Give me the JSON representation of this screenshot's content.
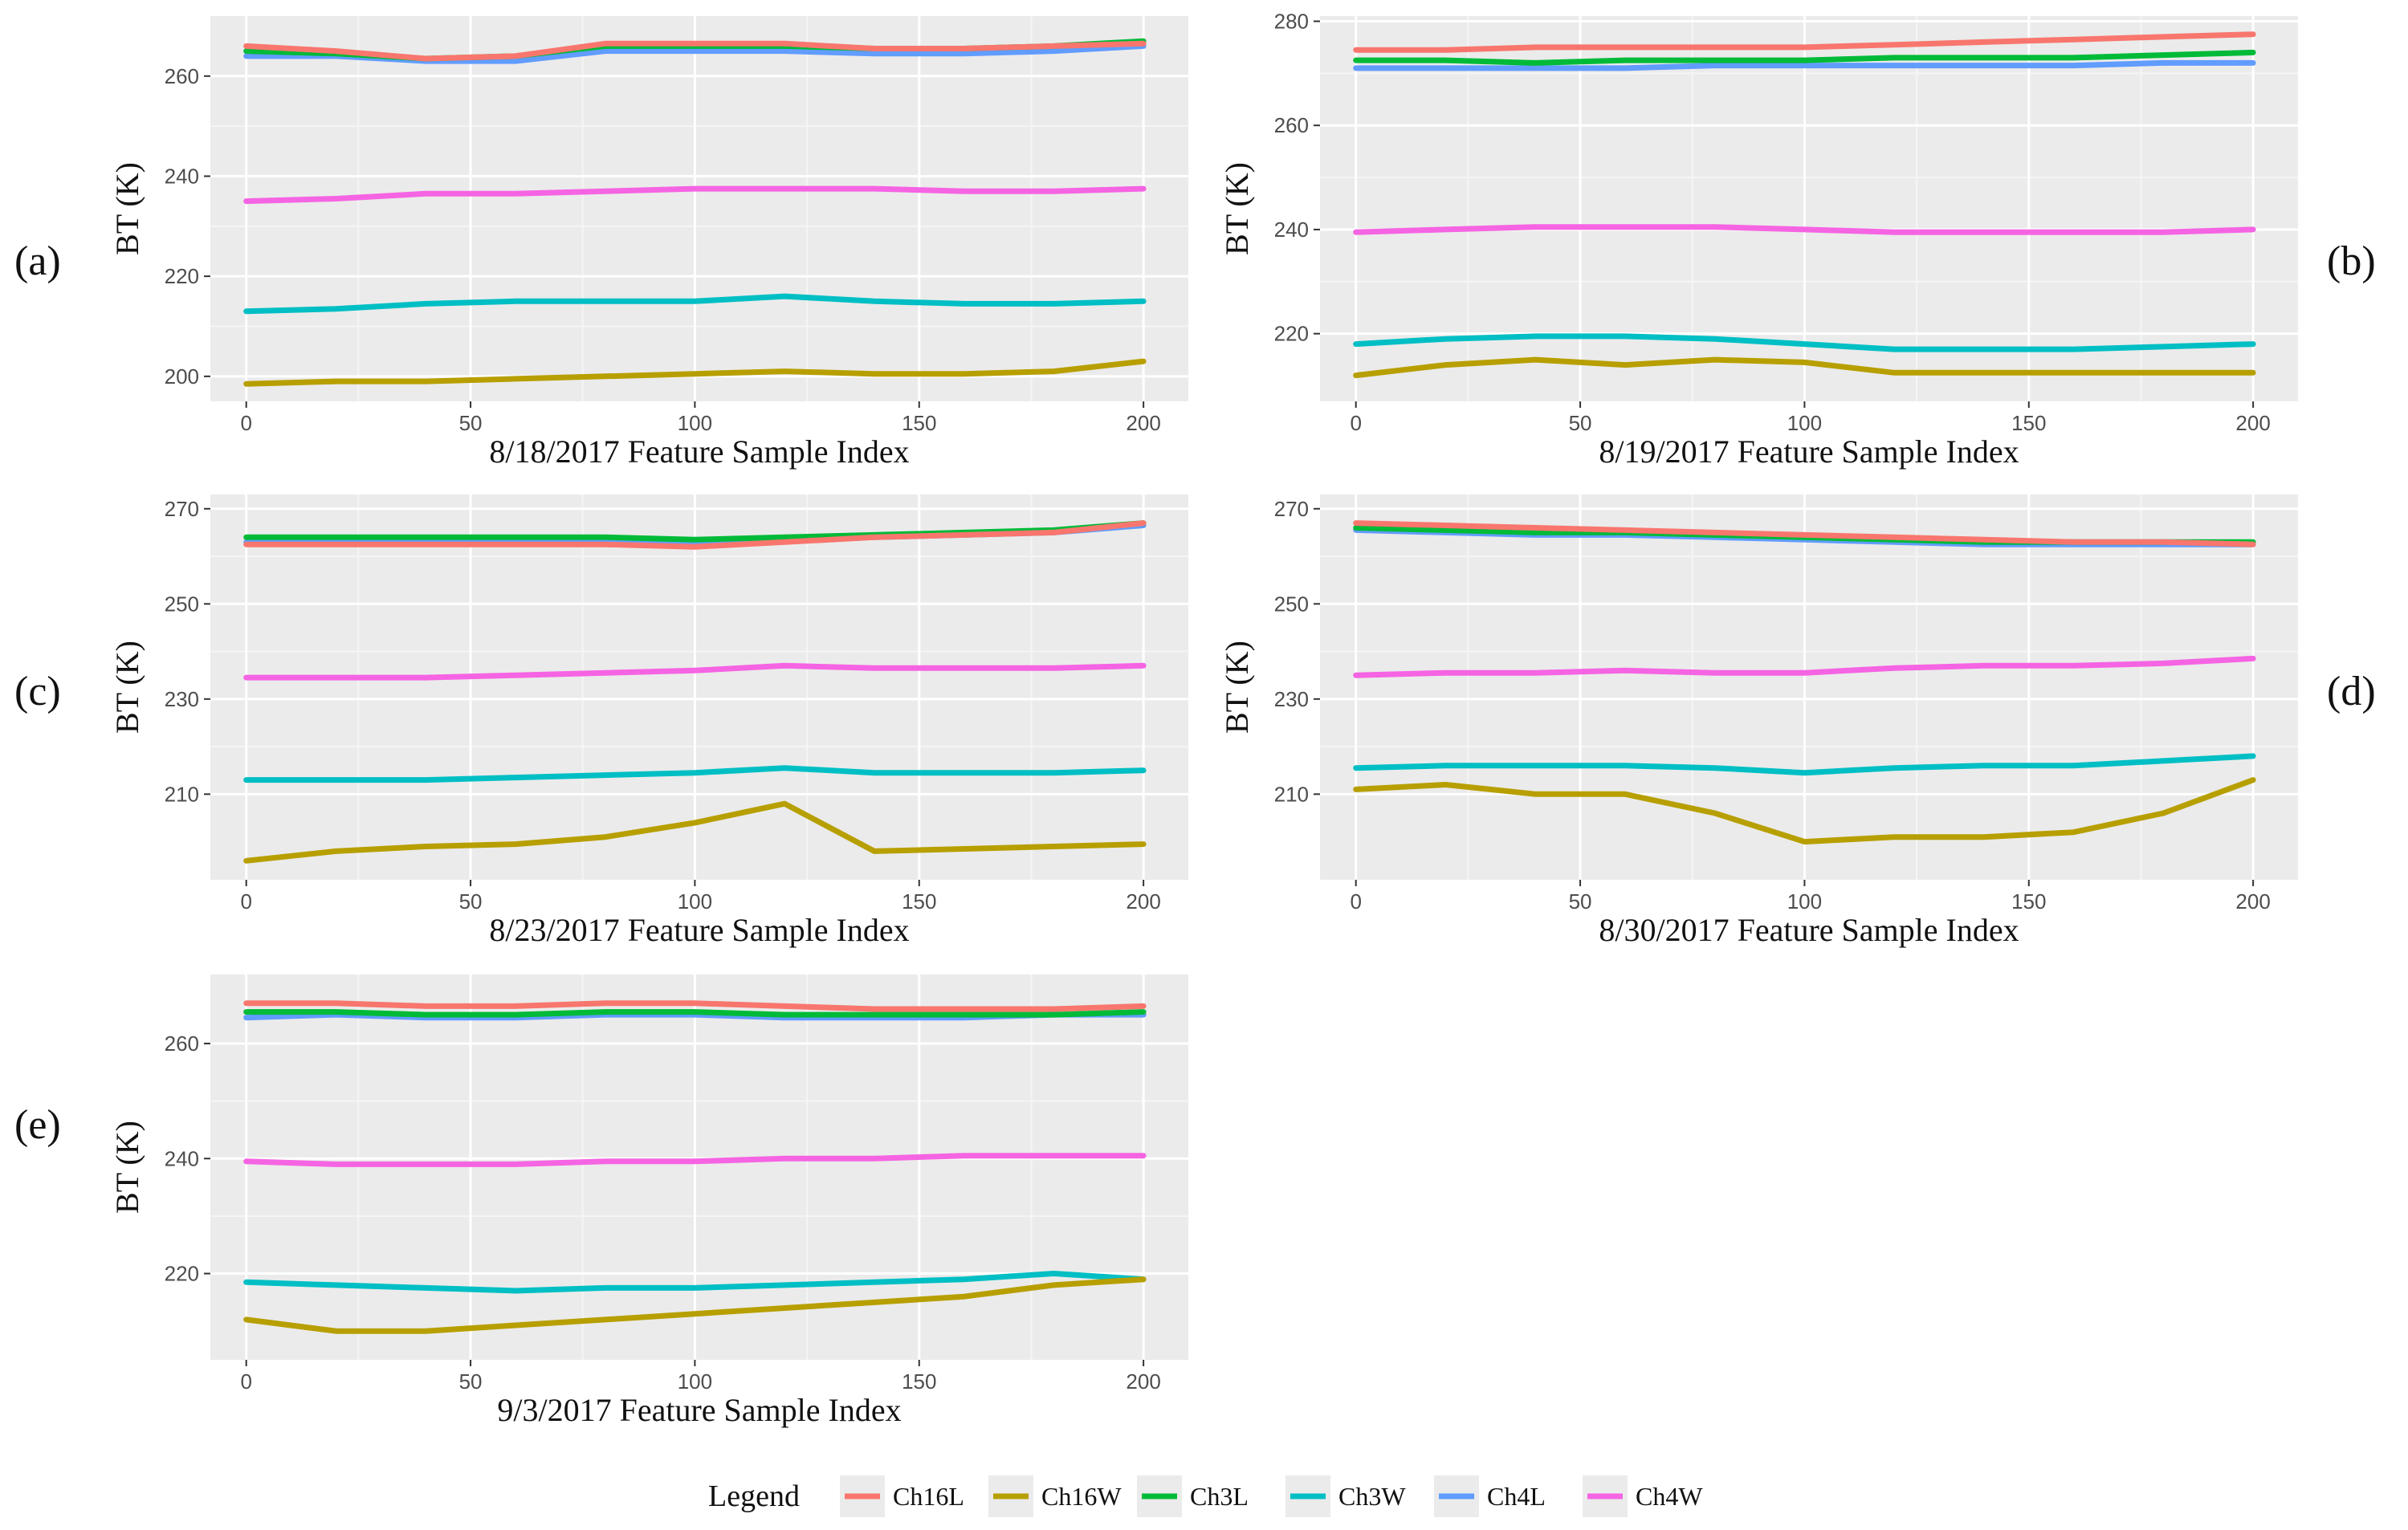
{
  "legend": {
    "title": "Legend",
    "items": [
      {
        "name": "Ch16L",
        "color": "#F8766D"
      },
      {
        "name": "Ch16W",
        "color": "#B79F00"
      },
      {
        "name": "Ch3L",
        "color": "#00BA38"
      },
      {
        "name": "Ch3W",
        "color": "#00BFC4"
      },
      {
        "name": "Ch4L",
        "color": "#619CFF"
      },
      {
        "name": "Ch4W",
        "color": "#F564E3"
      }
    ]
  },
  "chart_data": [
    {
      "panel": "(a)",
      "type": "line",
      "xlabel": "8/18/2017 Feature Sample Index",
      "ylabel": "BT (K)",
      "xlim": [
        -8,
        210
      ],
      "ylim": [
        195,
        272
      ],
      "xticks": [
        0,
        50,
        100,
        150,
        200
      ],
      "yticks": [
        200,
        220,
        240,
        260
      ],
      "series": [
        {
          "name": "Ch4W",
          "color": "#F564E3",
          "x": [
            0,
            20,
            40,
            60,
            80,
            100,
            120,
            140,
            160,
            180,
            200
          ],
          "y": [
            235,
            235.5,
            236.5,
            236.5,
            237,
            237.5,
            237.5,
            237.5,
            237,
            237,
            237.5
          ]
        },
        {
          "name": "Ch3W",
          "color": "#00BFC4",
          "x": [
            0,
            20,
            40,
            60,
            80,
            100,
            120,
            140,
            160,
            180,
            200
          ],
          "y": [
            213,
            213.5,
            214.5,
            215,
            215,
            215,
            216,
            215,
            214.5,
            214.5,
            215
          ]
        },
        {
          "name": "Ch16W",
          "color": "#B79F00",
          "x": [
            0,
            20,
            40,
            60,
            80,
            100,
            120,
            140,
            160,
            180,
            200
          ],
          "y": [
            198.5,
            199,
            199,
            199.5,
            200,
            200.5,
            201,
            200.5,
            200.5,
            201,
            203
          ]
        },
        {
          "name": "Ch4L",
          "color": "#619CFF",
          "x": [
            0,
            20,
            40,
            60,
            80,
            100,
            120,
            140,
            160,
            180,
            200
          ],
          "y": [
            264,
            264,
            263,
            263,
            265,
            265,
            265,
            264.5,
            264.5,
            265,
            266
          ]
        },
        {
          "name": "Ch3L",
          "color": "#00BA38",
          "x": [
            0,
            20,
            40,
            60,
            80,
            100,
            120,
            140,
            160,
            180,
            200
          ],
          "y": [
            265,
            264.5,
            263.5,
            264,
            266,
            266,
            266,
            265.5,
            265.5,
            266,
            267
          ]
        },
        {
          "name": "Ch16L",
          "color": "#F8766D",
          "x": [
            0,
            20,
            40,
            60,
            80,
            100,
            120,
            140,
            160,
            180,
            200
          ],
          "y": [
            266,
            265,
            263.5,
            264,
            266.5,
            266.5,
            266.5,
            265.5,
            265.5,
            266,
            266.5
          ]
        }
      ]
    },
    {
      "panel": "(b)",
      "type": "line",
      "xlabel": "8/19/2017 Feature Sample Index",
      "ylabel": "BT (K)",
      "xlim": [
        -8,
        210
      ],
      "ylim": [
        207,
        281
      ],
      "xticks": [
        0,
        50,
        100,
        150,
        200
      ],
      "yticks": [
        220,
        240,
        260,
        280
      ],
      "series": [
        {
          "name": "Ch4W",
          "color": "#F564E3",
          "x": [
            0,
            20,
            40,
            60,
            80,
            100,
            120,
            140,
            160,
            180,
            200
          ],
          "y": [
            239.5,
            240,
            240.5,
            240.5,
            240.5,
            240,
            239.5,
            239.5,
            239.5,
            239.5,
            240
          ]
        },
        {
          "name": "Ch3W",
          "color": "#00BFC4",
          "x": [
            0,
            20,
            40,
            60,
            80,
            100,
            120,
            140,
            160,
            180,
            200
          ],
          "y": [
            218,
            219,
            219.5,
            219.5,
            219,
            218,
            217,
            217,
            217,
            217.5,
            218
          ]
        },
        {
          "name": "Ch16W",
          "color": "#B79F00",
          "x": [
            0,
            20,
            40,
            60,
            80,
            100,
            120,
            140,
            160,
            180,
            200
          ],
          "y": [
            212,
            214,
            215,
            214,
            215,
            214.5,
            212.5,
            212.5,
            212.5,
            212.5,
            212.5
          ]
        },
        {
          "name": "Ch4L",
          "color": "#619CFF",
          "x": [
            0,
            20,
            40,
            60,
            80,
            100,
            120,
            140,
            160,
            180,
            200
          ],
          "y": [
            271,
            271,
            271,
            271,
            271.5,
            271.5,
            271.5,
            271.5,
            271.5,
            272,
            272
          ]
        },
        {
          "name": "Ch3L",
          "color": "#00BA38",
          "x": [
            0,
            20,
            40,
            60,
            80,
            100,
            120,
            140,
            160,
            180,
            200
          ],
          "y": [
            272.5,
            272.5,
            272,
            272.5,
            272.5,
            272.5,
            273,
            273,
            273,
            273.5,
            274
          ]
        },
        {
          "name": "Ch16L",
          "color": "#F8766D",
          "x": [
            0,
            20,
            40,
            60,
            80,
            100,
            120,
            140,
            160,
            180,
            200
          ],
          "y": [
            274.5,
            274.5,
            275,
            275,
            275,
            275,
            275.5,
            276,
            276.5,
            277,
            277.5
          ]
        }
      ]
    },
    {
      "panel": "(c)",
      "type": "line",
      "xlabel": "8/23/2017 Feature Sample Index",
      "ylabel": "BT (K)",
      "xlim": [
        -8,
        210
      ],
      "ylim": [
        192,
        273
      ],
      "xticks": [
        0,
        50,
        100,
        150,
        200
      ],
      "yticks": [
        210,
        230,
        250,
        270
      ],
      "series": [
        {
          "name": "Ch4W",
          "color": "#F564E3",
          "x": [
            0,
            20,
            40,
            60,
            80,
            100,
            120,
            140,
            160,
            180,
            200
          ],
          "y": [
            234.5,
            234.5,
            234.5,
            235,
            235.5,
            236,
            237,
            236.5,
            236.5,
            236.5,
            237
          ]
        },
        {
          "name": "Ch3W",
          "color": "#00BFC4",
          "x": [
            0,
            20,
            40,
            60,
            80,
            100,
            120,
            140,
            160,
            180,
            200
          ],
          "y": [
            213,
            213,
            213,
            213.5,
            214,
            214.5,
            215.5,
            214.5,
            214.5,
            214.5,
            215
          ]
        },
        {
          "name": "Ch16W",
          "color": "#B79F00",
          "x": [
            0,
            20,
            40,
            60,
            80,
            100,
            120,
            140,
            160,
            180,
            200
          ],
          "y": [
            196,
            198,
            199,
            199.5,
            201,
            204,
            208,
            198,
            198.5,
            199,
            199.5
          ]
        },
        {
          "name": "Ch4L",
          "color": "#619CFF",
          "x": [
            0,
            20,
            40,
            60,
            80,
            100,
            120,
            140,
            160,
            180,
            200
          ],
          "y": [
            263,
            263,
            263,
            263,
            263,
            263,
            263.5,
            264,
            264.5,
            265,
            266.5
          ]
        },
        {
          "name": "Ch3L",
          "color": "#00BA38",
          "x": [
            0,
            20,
            40,
            60,
            80,
            100,
            120,
            140,
            160,
            180,
            200
          ],
          "y": [
            264,
            264,
            264,
            264,
            264,
            263.5,
            264,
            264.5,
            265,
            265.5,
            267
          ]
        },
        {
          "name": "Ch16L",
          "color": "#F8766D",
          "x": [
            0,
            20,
            40,
            60,
            80,
            100,
            120,
            140,
            160,
            180,
            200
          ],
          "y": [
            262.5,
            262.5,
            262.5,
            262.5,
            262.5,
            262,
            263,
            264,
            264.5,
            265,
            267
          ]
        }
      ]
    },
    {
      "panel": "(d)",
      "type": "line",
      "xlabel": "8/30/2017 Feature Sample Index",
      "ylabel": "BT (K)",
      "xlim": [
        -8,
        210
      ],
      "ylim": [
        192,
        273
      ],
      "xticks": [
        0,
        50,
        100,
        150,
        200
      ],
      "yticks": [
        210,
        230,
        250,
        270
      ],
      "series": [
        {
          "name": "Ch4W",
          "color": "#F564E3",
          "x": [
            0,
            20,
            40,
            60,
            80,
            100,
            120,
            140,
            160,
            180,
            200
          ],
          "y": [
            235,
            235.5,
            235.5,
            236,
            235.5,
            235.5,
            236.5,
            237,
            237,
            237.5,
            238.5
          ]
        },
        {
          "name": "Ch3W",
          "color": "#00BFC4",
          "x": [
            0,
            20,
            40,
            60,
            80,
            100,
            120,
            140,
            160,
            180,
            200
          ],
          "y": [
            215.5,
            216,
            216,
            216,
            215.5,
            214.5,
            215.5,
            216,
            216,
            217,
            218
          ]
        },
        {
          "name": "Ch16W",
          "color": "#B79F00",
          "x": [
            0,
            20,
            40,
            60,
            80,
            100,
            120,
            140,
            160,
            180,
            200
          ],
          "y": [
            211,
            212,
            210,
            210,
            206,
            200,
            201,
            201,
            202,
            206,
            213
          ]
        },
        {
          "name": "Ch4L",
          "color": "#619CFF",
          "x": [
            0,
            20,
            40,
            60,
            80,
            100,
            120,
            140,
            160,
            180,
            200
          ],
          "y": [
            265.5,
            265,
            264.5,
            264.5,
            264,
            263.5,
            263,
            262.5,
            262.5,
            262.5,
            262.5
          ]
        },
        {
          "name": "Ch3L",
          "color": "#00BA38",
          "x": [
            0,
            20,
            40,
            60,
            80,
            100,
            120,
            140,
            160,
            180,
            200
          ],
          "y": [
            266,
            265.5,
            265,
            265,
            264.5,
            264,
            263.5,
            263,
            263,
            263,
            263
          ]
        },
        {
          "name": "Ch16L",
          "color": "#F8766D",
          "x": [
            0,
            20,
            40,
            60,
            80,
            100,
            120,
            140,
            160,
            180,
            200
          ],
          "y": [
            267,
            266.5,
            266,
            265.5,
            265,
            264.5,
            264,
            263.5,
            263,
            263,
            262.5
          ]
        }
      ]
    },
    {
      "panel": "(e)",
      "type": "line",
      "xlabel": "9/3/2017 Feature Sample Index",
      "ylabel": "BT (K)",
      "xlim": [
        -8,
        210
      ],
      "ylim": [
        205,
        272
      ],
      "xticks": [
        0,
        50,
        100,
        150,
        200
      ],
      "yticks": [
        220,
        240,
        260
      ],
      "series": [
        {
          "name": "Ch4W",
          "color": "#F564E3",
          "x": [
            0,
            20,
            40,
            60,
            80,
            100,
            120,
            140,
            160,
            180,
            200
          ],
          "y": [
            239.5,
            239,
            239,
            239,
            239.5,
            239.5,
            240,
            240,
            240.5,
            240.5,
            240.5
          ]
        },
        {
          "name": "Ch3W",
          "color": "#00BFC4",
          "x": [
            0,
            20,
            40,
            60,
            80,
            100,
            120,
            140,
            160,
            180,
            200
          ],
          "y": [
            218.5,
            218,
            217.5,
            217,
            217.5,
            217.5,
            218,
            218.5,
            219,
            220,
            219
          ]
        },
        {
          "name": "Ch16W",
          "color": "#B79F00",
          "x": [
            0,
            20,
            40,
            60,
            80,
            100,
            120,
            140,
            160,
            180,
            200
          ],
          "y": [
            212,
            210,
            210,
            211,
            212,
            213,
            214,
            215,
            216,
            218,
            219
          ]
        },
        {
          "name": "Ch4L",
          "color": "#619CFF",
          "x": [
            0,
            20,
            40,
            60,
            80,
            100,
            120,
            140,
            160,
            180,
            200
          ],
          "y": [
            264.5,
            265,
            264.5,
            264.5,
            265,
            265,
            264.5,
            264.5,
            264.5,
            265,
            265
          ]
        },
        {
          "name": "Ch3L",
          "color": "#00BA38",
          "x": [
            0,
            20,
            40,
            60,
            80,
            100,
            120,
            140,
            160,
            180,
            200
          ],
          "y": [
            265.5,
            265.5,
            265,
            265,
            265.5,
            265.5,
            265,
            265,
            265,
            265,
            265.5
          ]
        },
        {
          "name": "Ch16L",
          "color": "#F8766D",
          "x": [
            0,
            20,
            40,
            60,
            80,
            100,
            120,
            140,
            160,
            180,
            200
          ],
          "y": [
            267,
            267,
            266.5,
            266.5,
            267,
            267,
            266.5,
            266,
            266,
            266,
            266.5
          ]
        }
      ]
    }
  ]
}
